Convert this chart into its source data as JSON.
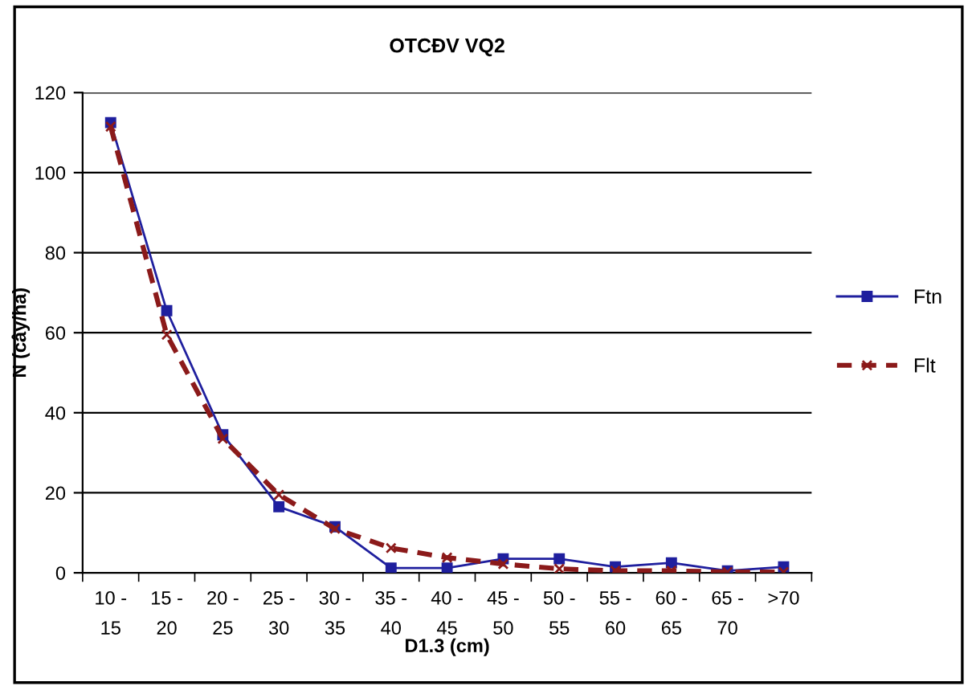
{
  "chart_data": {
    "type": "line",
    "title": "OTCĐV VQ2",
    "xlabel": "D1.3 (cm)",
    "ylabel": "N (cây/ha)",
    "categories": [
      "10 - 15",
      "15 - 20",
      "20 - 25",
      "25 - 30",
      "30 - 35",
      "35 - 40",
      "40 - 45",
      "45 - 50",
      "50 - 55",
      "55 - 60",
      "60 - 65",
      "65 - 70",
      ">70"
    ],
    "series": [
      {
        "name": "Ftn",
        "color": "#1f1f9e",
        "marker": "square",
        "line_style": "solid",
        "values": [
          112.5,
          65.5,
          34.5,
          16.5,
          11.5,
          1.2,
          1.2,
          3.5,
          3.5,
          1.5,
          2.5,
          0.5,
          1.5
        ]
      },
      {
        "name": "Flt",
        "color": "#8b1a1a",
        "marker": "cross",
        "line_style": "dashed",
        "values": [
          111.5,
          59.5,
          33.5,
          19.5,
          11,
          6.2,
          3.8,
          2.2,
          1,
          0.5,
          0.5,
          0.2,
          0.2
        ]
      }
    ],
    "ylim": [
      0,
      120
    ],
    "yticks": [
      0,
      20,
      40,
      60,
      80,
      100,
      120
    ],
    "grid": "y",
    "legend": "right"
  }
}
